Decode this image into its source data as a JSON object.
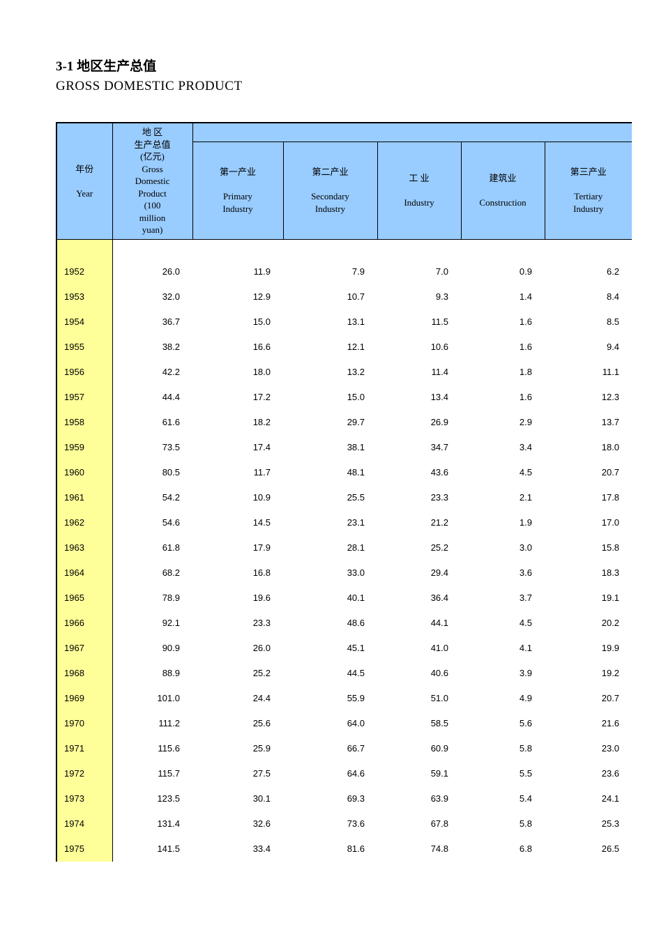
{
  "title_cn": "3-1  地区生产总值",
  "title_en": "GROSS DOMESTIC PRODUCT",
  "header_colors": {
    "header_bg": "#99ccff",
    "year_col_bg": "#ffff99",
    "border": "#000000",
    "text": "#000000"
  },
  "columns": [
    {
      "key": "year",
      "cn": "年份",
      "en": "Year"
    },
    {
      "key": "gdp",
      "cn": "地 区\n生产总值\n(亿元)",
      "en": "Gross\nDomestic\nProduct\n(100\nmillion\nyuan)"
    },
    {
      "key": "primary",
      "cn": "第一产业",
      "en": "Primary\nIndustry"
    },
    {
      "key": "secondary",
      "cn": "第二产业",
      "en": "Secondary\nIndustry"
    },
    {
      "key": "industry",
      "cn": "工 业",
      "en": "Industry"
    },
    {
      "key": "construction",
      "cn": "建筑业",
      "en": "Construction"
    },
    {
      "key": "tertiary",
      "cn": "第三产业",
      "en": "Tertiary\nIndustry"
    }
  ],
  "rows": [
    {
      "year": "1952",
      "gdp": "26.0",
      "primary": "11.9",
      "secondary": "7.9",
      "industry": "7.0",
      "construction": "0.9",
      "tertiary": "6.2"
    },
    {
      "year": "1953",
      "gdp": "32.0",
      "primary": "12.9",
      "secondary": "10.7",
      "industry": "9.3",
      "construction": "1.4",
      "tertiary": "8.4"
    },
    {
      "year": "1954",
      "gdp": "36.7",
      "primary": "15.0",
      "secondary": "13.1",
      "industry": "11.5",
      "construction": "1.6",
      "tertiary": "8.5"
    },
    {
      "year": "1955",
      "gdp": "38.2",
      "primary": "16.6",
      "secondary": "12.1",
      "industry": "10.6",
      "construction": "1.6",
      "tertiary": "9.4"
    },
    {
      "year": "1956",
      "gdp": "42.2",
      "primary": "18.0",
      "secondary": "13.2",
      "industry": "11.4",
      "construction": "1.8",
      "tertiary": "11.1"
    },
    {
      "year": "1957",
      "gdp": "44.4",
      "primary": "17.2",
      "secondary": "15.0",
      "industry": "13.4",
      "construction": "1.6",
      "tertiary": "12.3"
    },
    {
      "year": "1958",
      "gdp": "61.6",
      "primary": "18.2",
      "secondary": "29.7",
      "industry": "26.9",
      "construction": "2.9",
      "tertiary": "13.7"
    },
    {
      "year": "1959",
      "gdp": "73.5",
      "primary": "17.4",
      "secondary": "38.1",
      "industry": "34.7",
      "construction": "3.4",
      "tertiary": "18.0"
    },
    {
      "year": "1960",
      "gdp": "80.5",
      "primary": "11.7",
      "secondary": "48.1",
      "industry": "43.6",
      "construction": "4.5",
      "tertiary": "20.7"
    },
    {
      "year": "1961",
      "gdp": "54.2",
      "primary": "10.9",
      "secondary": "25.5",
      "industry": "23.3",
      "construction": "2.1",
      "tertiary": "17.8"
    },
    {
      "year": "1962",
      "gdp": "54.6",
      "primary": "14.5",
      "secondary": "23.1",
      "industry": "21.2",
      "construction": "1.9",
      "tertiary": "17.0"
    },
    {
      "year": "1963",
      "gdp": "61.8",
      "primary": "17.9",
      "secondary": "28.1",
      "industry": "25.2",
      "construction": "3.0",
      "tertiary": "15.8"
    },
    {
      "year": "1964",
      "gdp": "68.2",
      "primary": "16.8",
      "secondary": "33.0",
      "industry": "29.4",
      "construction": "3.6",
      "tertiary": "18.3"
    },
    {
      "year": "1965",
      "gdp": "78.9",
      "primary": "19.6",
      "secondary": "40.1",
      "industry": "36.4",
      "construction": "3.7",
      "tertiary": "19.1"
    },
    {
      "year": "1966",
      "gdp": "92.1",
      "primary": "23.3",
      "secondary": "48.6",
      "industry": "44.1",
      "construction": "4.5",
      "tertiary": "20.2"
    },
    {
      "year": "1967",
      "gdp": "90.9",
      "primary": "26.0",
      "secondary": "45.1",
      "industry": "41.0",
      "construction": "4.1",
      "tertiary": "19.9"
    },
    {
      "year": "1968",
      "gdp": "88.9",
      "primary": "25.2",
      "secondary": "44.5",
      "industry": "40.6",
      "construction": "3.9",
      "tertiary": "19.2"
    },
    {
      "year": "1969",
      "gdp": "101.0",
      "primary": "24.4",
      "secondary": "55.9",
      "industry": "51.0",
      "construction": "4.9",
      "tertiary": "20.7"
    },
    {
      "year": "1970",
      "gdp": "111.2",
      "primary": "25.6",
      "secondary": "64.0",
      "industry": "58.5",
      "construction": "5.6",
      "tertiary": "21.6"
    },
    {
      "year": "1971",
      "gdp": "115.6",
      "primary": "25.9",
      "secondary": "66.7",
      "industry": "60.9",
      "construction": "5.8",
      "tertiary": "23.0"
    },
    {
      "year": "1972",
      "gdp": "115.7",
      "primary": "27.5",
      "secondary": "64.6",
      "industry": "59.1",
      "construction": "5.5",
      "tertiary": "23.6"
    },
    {
      "year": "1973",
      "gdp": "123.5",
      "primary": "30.1",
      "secondary": "69.3",
      "industry": "63.9",
      "construction": "5.4",
      "tertiary": "24.1"
    },
    {
      "year": "1974",
      "gdp": "131.4",
      "primary": "32.6",
      "secondary": "73.6",
      "industry": "67.8",
      "construction": "5.8",
      "tertiary": "25.3"
    },
    {
      "year": "1975",
      "gdp": "141.5",
      "primary": "33.4",
      "secondary": "81.6",
      "industry": "74.8",
      "construction": "6.8",
      "tertiary": "26.5"
    }
  ]
}
